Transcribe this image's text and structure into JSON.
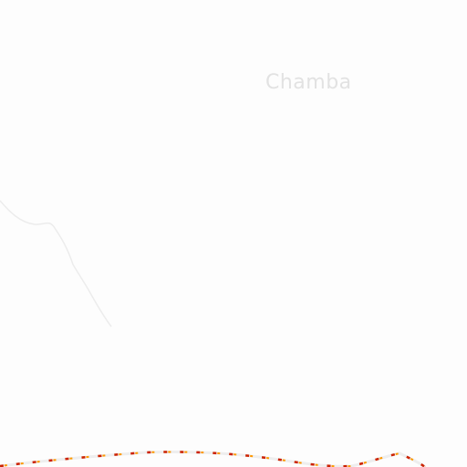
{
  "map": {
    "place_labels": [
      {
        "text": "Chamba"
      }
    ],
    "features": [
      {
        "type": "river",
        "color": "#ececec"
      },
      {
        "type": "boundary",
        "color": "#e8e8e8",
        "dash_colors": [
          "#cc2200",
          "#ff9900"
        ]
      }
    ],
    "background_color": "#fdfdfd"
  }
}
